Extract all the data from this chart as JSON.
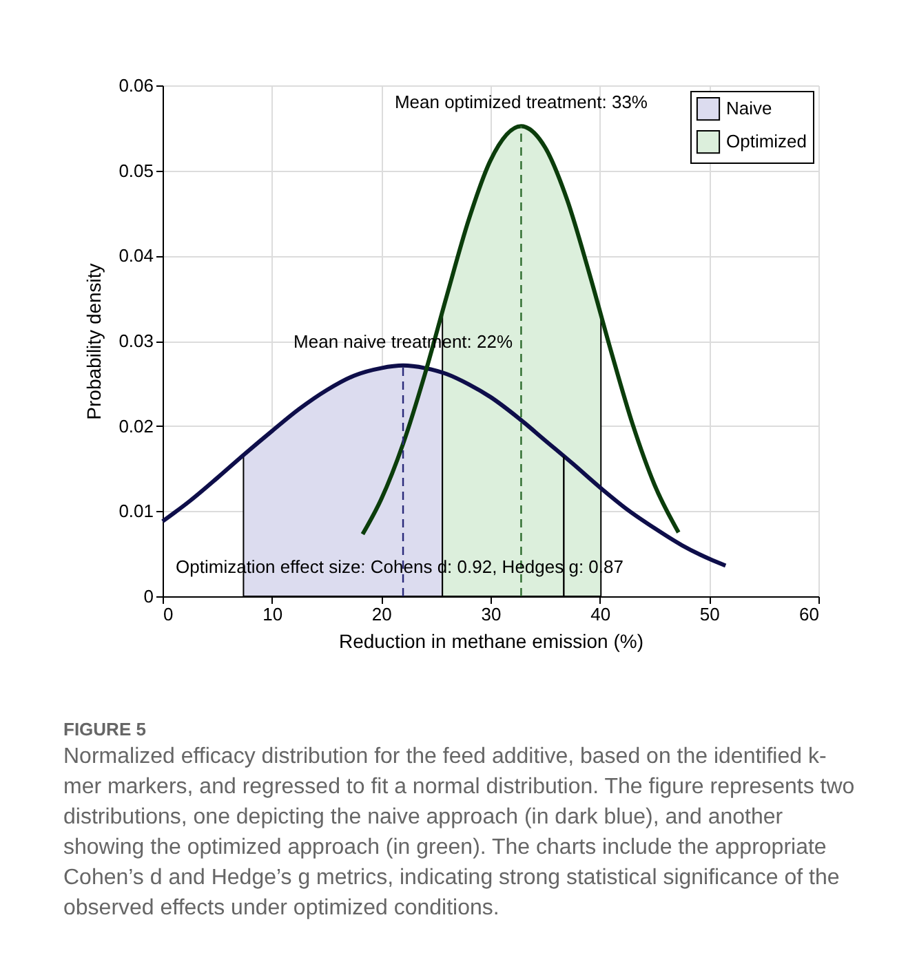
{
  "chart_data": {
    "type": "line",
    "xlabel": "Reduction in methane emission (%)",
    "ylabel": "Probability density",
    "xlim": [
      0,
      60
    ],
    "xticks": [
      0,
      10,
      20,
      30,
      40,
      50,
      60
    ],
    "ylim": [
      0,
      0.06
    ],
    "yticks": [
      0,
      0.01,
      0.02,
      0.03,
      0.04,
      0.05,
      0.06
    ],
    "grid": true,
    "legend": "top right",
    "series": [
      {
        "name": "Naive",
        "type": "area",
        "color": "#dcdcef",
        "x": [
          7.4,
          10,
          12.5,
          15,
          17.5,
          20,
          22,
          24,
          25.6
        ],
        "values": [
          0.0166,
          0.0194,
          0.022,
          0.0242,
          0.0259,
          0.0268,
          0.0271,
          0.0268,
          0.0263
        ]
      },
      {
        "name": "Optimized",
        "type": "area",
        "color": "#dcefdc",
        "x": [
          25.6,
          28,
          30,
          32.8,
          35,
          37,
          39,
          40.1
        ],
        "values": [
          0.0335,
          0.0442,
          0.0512,
          0.0552,
          0.0527,
          0.0466,
          0.0381,
          0.033
        ]
      },
      {
        "color": "#0e0e4a",
        "x": [
          0,
          2.5,
          5,
          7.5,
          10,
          12.5,
          15,
          17.5,
          20,
          22,
          24,
          26,
          28,
          30,
          32.5,
          35,
          37.5,
          40,
          42.5,
          45,
          47.5,
          50,
          51.5
        ],
        "values": [
          0.0088,
          0.0112,
          0.0139,
          0.0167,
          0.0194,
          0.022,
          0.0242,
          0.0259,
          0.0268,
          0.0271,
          0.0268,
          0.0261,
          0.0249,
          0.0234,
          0.021,
          0.0183,
          0.0156,
          0.0128,
          0.0102,
          0.008,
          0.006,
          0.0044,
          0.0036
        ]
      },
      {
        "color": "#0b3d0b",
        "x": [
          18.3,
          20,
          22,
          24,
          26,
          28,
          30,
          32.8,
          35,
          37,
          39,
          41,
          43,
          45,
          47.2
        ],
        "values": [
          0.0073,
          0.0114,
          0.0179,
          0.0261,
          0.0353,
          0.0442,
          0.0512,
          0.0552,
          0.0527,
          0.0466,
          0.0381,
          0.0289,
          0.0202,
          0.0131,
          0.0075
        ]
      },
      {
        "color": "#000000",
        "x": [
          36.7,
          36.7
        ],
        "values": [
          0,
          0.0164
        ]
      },
      {
        "line_style": "dashed",
        "color": "#2a2a7a",
        "x": [
          22,
          22
        ],
        "values": [
          0,
          0.0271
        ]
      },
      {
        "line_style": "dashed",
        "color": "#2d6b2d",
        "x": [
          32.8,
          32.8
        ],
        "values": [
          0,
          0.0552
        ]
      }
    ],
    "annotations": [
      {
        "text": "Mean naive treatment: 22%",
        "x": 22,
        "y": 0.0271
      },
      {
        "text": "Mean optimized treatment: 33%",
        "x": 32.8,
        "y": 0.0552
      },
      "Optimization effect size: Cohens d: 0.92, Hedges g: 0.87",
      "FIGURE 5",
      "Normalized efficacy distribution for the feed additive, based on the identified k-mer markers, and regressed to fit a normal distribution. The figure represents two distributions, one depicting the naive approach (in dark blue), and another showing the optimized approach (in green). The charts include the appropriate Cohen’s d and Hedge’s g metrics, indicating strong statistical significance of the observed effects under optimized conditions."
    ]
  }
}
